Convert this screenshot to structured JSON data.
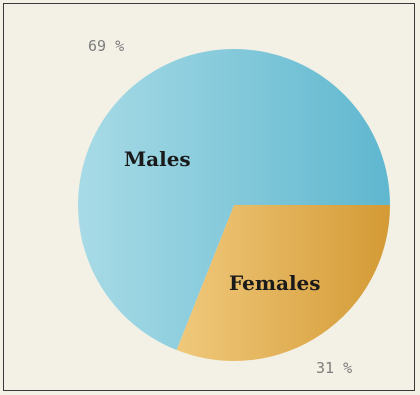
{
  "chart_data": {
    "type": "pie",
    "title": "",
    "categories": [
      "Males",
      "Females"
    ],
    "values": [
      69,
      31
    ],
    "percent_labels": [
      "69 %",
      "31 %"
    ],
    "colors": [
      "#78c7dc",
      "#e2b466"
    ],
    "legend": "none"
  }
}
